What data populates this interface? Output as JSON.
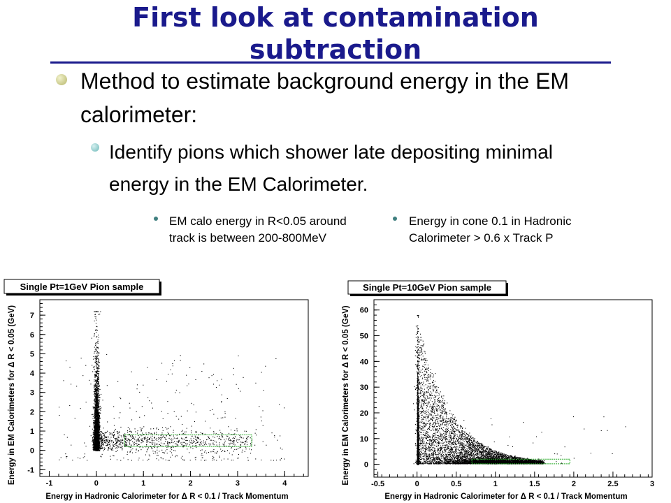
{
  "slide": {
    "title": "First look at contamination subtraction",
    "bullet1": "Method to estimate background energy in the EM calorimeter:",
    "bullet2": "Identify pions which shower late depositing minimal energy in the EM Calorimeter.",
    "sub_left": "EM calo energy in R<0.05 around track is between 200-800MeV",
    "sub_right": "Energy in cone 0.1 in Hadronic Calorimeter > 0.6 x Track P",
    "title_color": "#1a1a8c"
  },
  "chart_data": [
    {
      "type": "scatter",
      "title": "Single Pt=1GeV Pion sample",
      "xlabel": "Energy in Hadronic Calorimeter for Δ R < 0.1 / Track Momentum",
      "ylabel": "Energy in EM Calorimeters for Δ R < 0.05 (GeV)",
      "xlim": [
        -1.2,
        4.5
      ],
      "ylim": [
        -1.35,
        7.8
      ],
      "xticks": [
        -1,
        0,
        1,
        2,
        3,
        4
      ],
      "yticks": [
        -1,
        0,
        1,
        2,
        3,
        4,
        5,
        6,
        7
      ],
      "grid": false,
      "legend": "none",
      "selection_box": {
        "x": [
          0.6,
          3.3
        ],
        "y": [
          0.2,
          0.8
        ]
      },
      "distribution": [
        {
          "region": "vertical band",
          "x_center": 0.0,
          "x_spread": 0.04,
          "y_range": [
            0,
            7.2
          ],
          "approx_points": 3000
        },
        {
          "region": "horizontal tail",
          "x_range": [
            0.1,
            3.3
          ],
          "y_center": 0.5,
          "approx_points": 800
        },
        {
          "region": "diffuse",
          "x_range": [
            -0.8,
            4.0
          ],
          "y_range": [
            -0.5,
            5.0
          ],
          "approx_points": 300
        }
      ]
    },
    {
      "type": "scatter",
      "title": "Single Pt=10GeV Pion sample",
      "xlabel": "Energy in Hadronic Calorimeter for Δ R < 0.1 / Track Momentum",
      "ylabel": "Energy in EM Calorimeters for Δ R < 0.05 (GeV)",
      "xlim": [
        -0.55,
        3.0
      ],
      "ylim": [
        -5,
        64
      ],
      "xticks": [
        -0.5,
        0,
        0.5,
        1,
        1.5,
        2,
        2.5,
        3
      ],
      "yticks": [
        0,
        10,
        20,
        30,
        40,
        50,
        60
      ],
      "grid": false,
      "legend": "none",
      "selection_box": {
        "x": [
          0.7,
          1.95
        ],
        "y": [
          0.2,
          2.0
        ]
      },
      "distribution": [
        {
          "region": "vertical band",
          "x_center": 0.0,
          "x_spread": 0.01,
          "y_range": [
            0,
            60
          ],
          "approx_points": 1500
        },
        {
          "region": "diagonal cloud",
          "x_range": [
            0,
            1.6
          ],
          "y_range": [
            0,
            55
          ],
          "approx_points": 5000
        },
        {
          "region": "horizontal band",
          "x_range": [
            0.6,
            1.6
          ],
          "y_center": 1.0,
          "approx_points": 1500
        }
      ]
    }
  ]
}
